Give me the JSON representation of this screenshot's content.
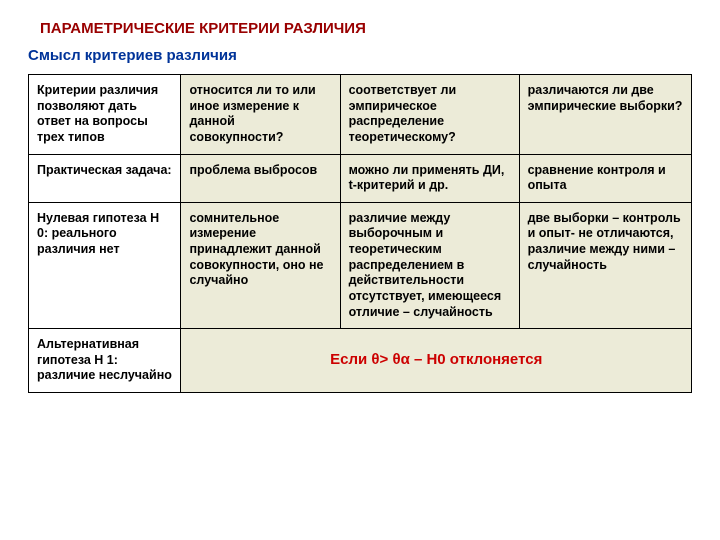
{
  "title": "ПАРАМЕТРИЧЕСКИЕ КРИТЕРИИ РАЗЛИЧИЯ",
  "subtitle": "Смысл критериев различия",
  "colors": {
    "title_color": "#990000",
    "subtitle_color": "#003399",
    "table_bg": "#ecebd8",
    "firstcol_bg": "#ffffff",
    "merged_color": "#cc0000",
    "border_color": "#000000"
  },
  "col_widths": [
    "23%",
    "24%",
    "27%",
    "26%"
  ],
  "rows": [
    {
      "cells": [
        "Критерии различия позволяют дать ответ на вопросы трех типов",
        "относится ли то или иное измерение к данной совокупности?",
        "соответствует ли эмпирическое распределение теоретическому?",
        "различаются ли две эмпирические выборки?"
      ]
    },
    {
      "cells": [
        "Практическая задача:",
        "проблема выбросов",
        "можно ли применять ДИ, t-критерий и др.",
        "сравнение контроля и опыта"
      ]
    },
    {
      "cells": [
        "Нулевая гипотеза Н 0: реального различия нет",
        "сомнительное измерение принадлежит данной совокупности, оно не случайно",
        "различие между выборочным и теоретическим распределением в действительности отсутствует, имеющееся отличие – случайность",
        "две выборки – контроль и опыт- не отличаются, различие между ними – случайность"
      ]
    }
  ],
  "last_row_label": "Альтернативная гипотеза Н 1: различие неслучайно",
  "merged_text": "Если θ> θα – Н0 отклоняется"
}
